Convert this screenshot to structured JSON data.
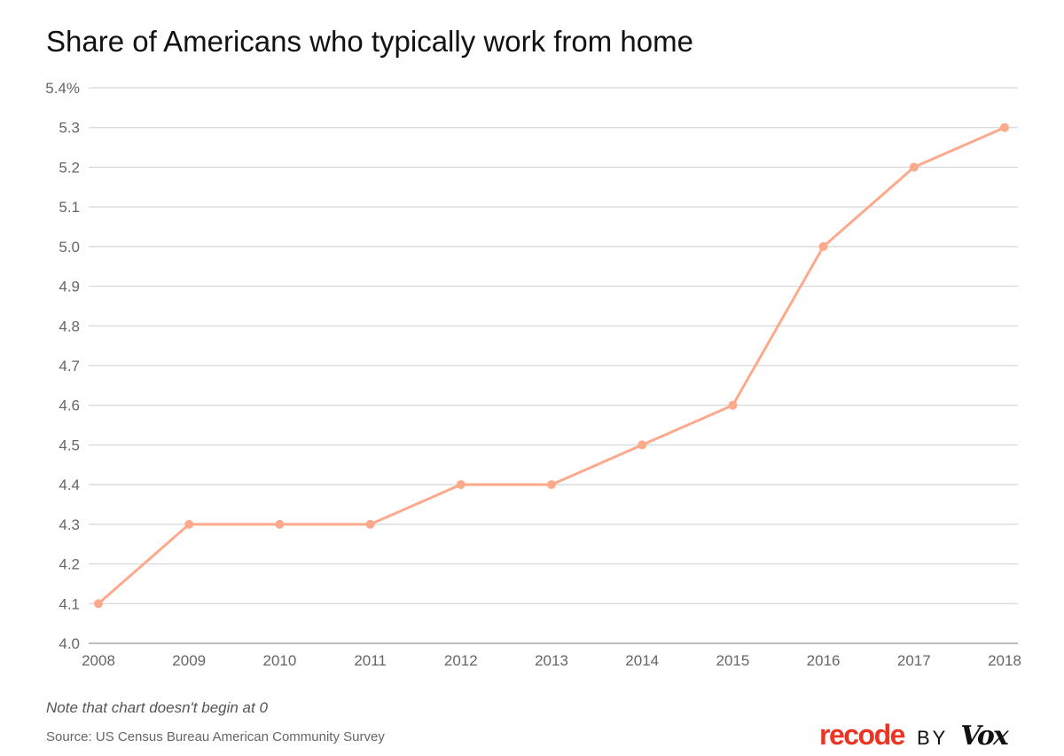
{
  "chart_data": {
    "type": "line",
    "title": "Share of Americans who typically work from home",
    "x": [
      2008,
      2009,
      2010,
      2011,
      2012,
      2013,
      2014,
      2015,
      2016,
      2017,
      2018
    ],
    "series": [
      {
        "values": [
          4.1,
          4.3,
          4.3,
          4.3,
          4.4,
          4.4,
          4.5,
          4.6,
          5.0,
          5.2,
          5.3
        ],
        "color": "#fda98b"
      }
    ],
    "ylim": [
      4.0,
      5.4
    ],
    "yticks": [
      "4.0",
      "4.1",
      "4.2",
      "4.3",
      "4.4",
      "4.5",
      "4.6",
      "4.7",
      "4.8",
      "4.9",
      "5.0",
      "5.1",
      "5.2",
      "5.3",
      "5.4%"
    ],
    "xticks": [
      "2008",
      "2009",
      "2010",
      "2011",
      "2012",
      "2013",
      "2014",
      "2015",
      "2016",
      "2017",
      "2018"
    ],
    "grid": true,
    "note": "Note that chart doesn't begin at 0",
    "source": "Source: US Census Bureau American Community Survey"
  },
  "logo": {
    "brand": "recode",
    "by": "BY",
    "parent": "Vox"
  }
}
